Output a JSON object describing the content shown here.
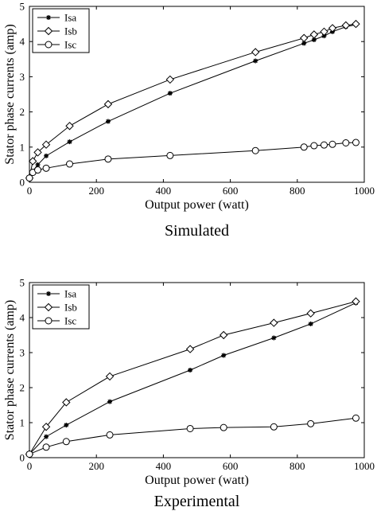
{
  "chart_data": [
    {
      "type": "line",
      "caption": "Simulated",
      "xlabel": "Output power (watt)",
      "ylabel": "Stator phase currents (amp)",
      "xlim": [
        0,
        1000
      ],
      "ylim": [
        0,
        5
      ],
      "xticks": [
        "0",
        "200",
        "400",
        "600",
        "800",
        "1000"
      ],
      "yticks": [
        "0",
        "1",
        "2",
        "3",
        "4",
        "5"
      ],
      "grid": false,
      "legend_position": "top-left",
      "series": [
        {
          "name": "Isa",
          "marker": "star",
          "x": [
            0,
            10,
            25,
            50,
            120,
            235,
            420,
            675,
            820,
            850,
            880,
            905,
            945,
            975
          ],
          "y": [
            0.12,
            0.32,
            0.5,
            0.75,
            1.15,
            1.73,
            2.53,
            3.45,
            3.95,
            4.05,
            4.16,
            4.28,
            4.42,
            4.48
          ]
        },
        {
          "name": "Isb",
          "marker": "diamond",
          "x": [
            0,
            10,
            25,
            50,
            120,
            235,
            420,
            675,
            820,
            850,
            880,
            905,
            945,
            975
          ],
          "y": [
            0.12,
            0.6,
            0.85,
            1.07,
            1.6,
            2.22,
            2.92,
            3.7,
            4.1,
            4.2,
            4.28,
            4.38,
            4.46,
            4.5
          ]
        },
        {
          "name": "Isc",
          "marker": "circle",
          "x": [
            0,
            10,
            25,
            50,
            120,
            235,
            420,
            675,
            820,
            850,
            880,
            905,
            945,
            975
          ],
          "y": [
            0.12,
            0.28,
            0.35,
            0.4,
            0.52,
            0.66,
            0.76,
            0.9,
            1.0,
            1.04,
            1.06,
            1.08,
            1.12,
            1.13
          ]
        }
      ]
    },
    {
      "type": "line",
      "caption": "Experimental",
      "xlabel": "Output power (watt)",
      "ylabel": "Stator phase currents (amp)",
      "xlim": [
        0,
        1000
      ],
      "ylim": [
        0,
        5
      ],
      "xticks": [
        "0",
        "200",
        "400",
        "600",
        "800",
        "1000"
      ],
      "yticks": [
        "0",
        "1",
        "2",
        "3",
        "4",
        "5"
      ],
      "grid": false,
      "legend_position": "top-left",
      "series": [
        {
          "name": "Isa",
          "marker": "star",
          "x": [
            0,
            50,
            110,
            240,
            480,
            580,
            730,
            840,
            975
          ],
          "y": [
            0.1,
            0.6,
            0.93,
            1.6,
            2.5,
            2.92,
            3.42,
            3.82,
            4.42
          ]
        },
        {
          "name": "Isb",
          "marker": "diamond",
          "x": [
            0,
            50,
            110,
            240,
            480,
            580,
            730,
            840,
            975
          ],
          "y": [
            0.1,
            0.88,
            1.58,
            2.32,
            3.1,
            3.5,
            3.85,
            4.12,
            4.46
          ]
        },
        {
          "name": "Isc",
          "marker": "circle",
          "x": [
            0,
            50,
            110,
            240,
            480,
            580,
            730,
            840,
            975
          ],
          "y": [
            0.1,
            0.3,
            0.46,
            0.65,
            0.83,
            0.86,
            0.88,
            0.97,
            1.13
          ]
        }
      ]
    }
  ]
}
